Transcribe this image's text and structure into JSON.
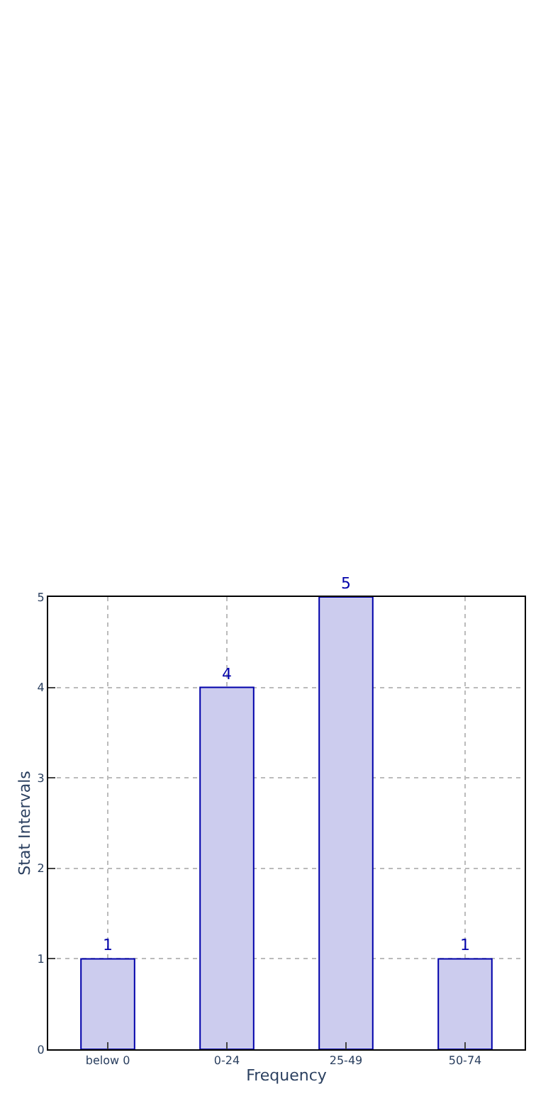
{
  "chart_data": {
    "type": "bar",
    "xlabel": "Frequency",
    "ylabel": "Stat Intervals",
    "categories": [
      "below 0",
      "0-24",
      "25-49",
      "50-74"
    ],
    "series": [
      {
        "color": "#ccccee",
        "values": [
          1,
          4,
          5,
          1
        ]
      }
    ],
    "ylim": [
      0,
      5
    ],
    "yticks": [
      0,
      1,
      2,
      3,
      4,
      5
    ],
    "grid": true,
    "data_labels": true,
    "legend": false
  }
}
